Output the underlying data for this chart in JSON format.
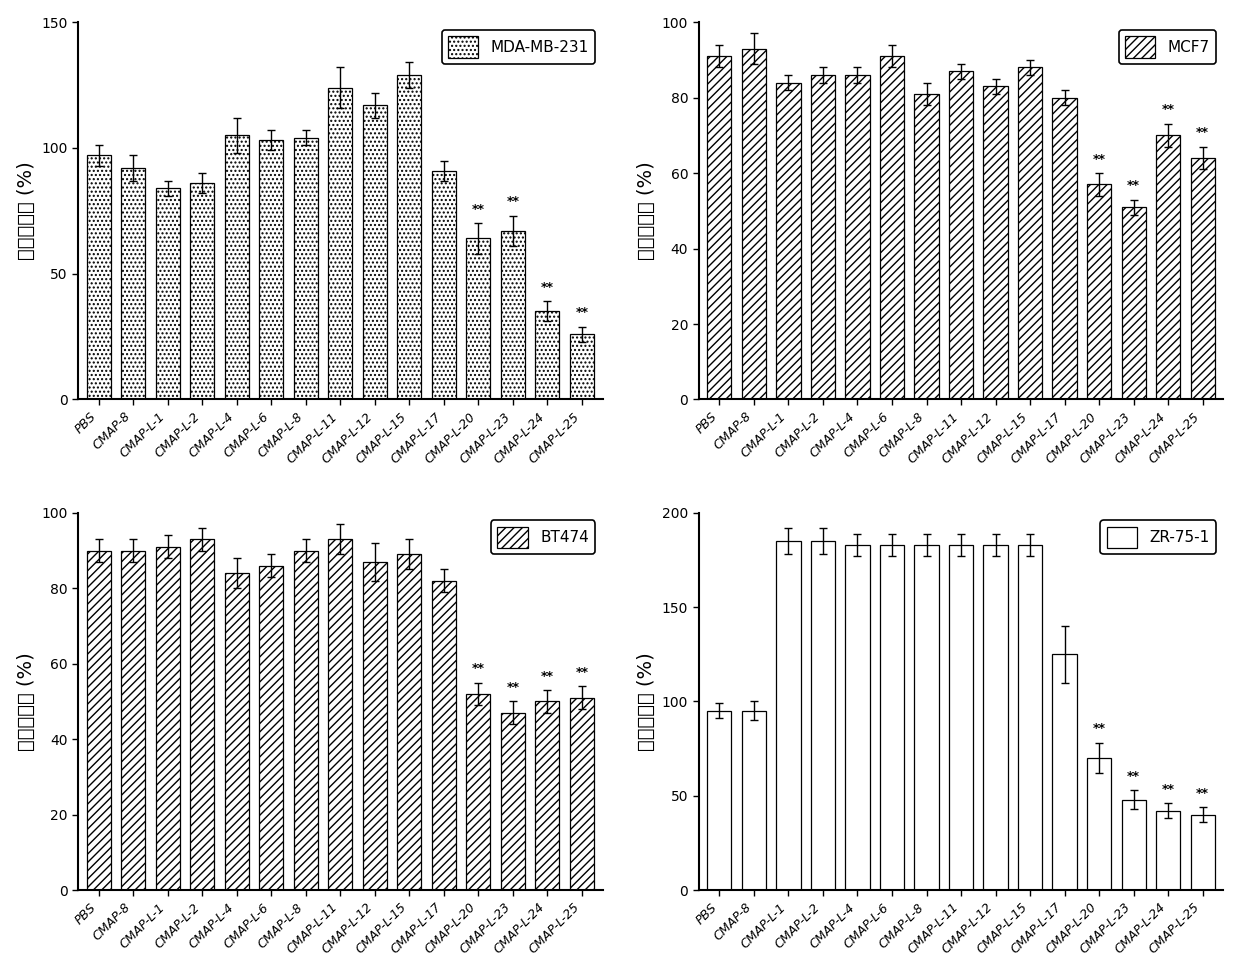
{
  "categories": [
    "PBS",
    "CMAP-8",
    "CMAP-L-1",
    "CMAP-L-2",
    "CMAP-L-4",
    "CMAP-L-6",
    "CMAP-L-8",
    "CMAP-L-11",
    "CMAP-L-12",
    "CMAP-L-15",
    "CMAP-L-17",
    "CMAP-L-20",
    "CMAP-L-23",
    "CMAP-L-24",
    "CMAP-L-25"
  ],
  "panels": [
    {
      "title": "MDA-MB-231",
      "hatch_pattern": "checkerboard",
      "values": [
        97,
        92,
        84,
        86,
        105,
        103,
        104,
        124,
        117,
        129,
        91,
        64,
        67,
        35,
        26
      ],
      "errors": [
        4,
        5,
        3,
        4,
        7,
        4,
        3,
        8,
        5,
        5,
        4,
        6,
        6,
        4,
        3
      ],
      "sig": [
        false,
        false,
        false,
        false,
        false,
        false,
        false,
        false,
        false,
        false,
        false,
        true,
        true,
        true,
        true
      ],
      "ylim": [
        0,
        150
      ],
      "yticks": [
        0,
        50,
        100,
        150
      ],
      "ylabel": "细胞存活率 (%)"
    },
    {
      "title": "MCF7",
      "hatch_pattern": "diagonal",
      "values": [
        91,
        93,
        84,
        86,
        86,
        91,
        81,
        87,
        83,
        88,
        80,
        57,
        51,
        70,
        64
      ],
      "errors": [
        3,
        4,
        2,
        2,
        2,
        3,
        3,
        2,
        2,
        2,
        2,
        3,
        2,
        3,
        3
      ],
      "sig": [
        false,
        false,
        false,
        false,
        false,
        false,
        false,
        false,
        false,
        false,
        false,
        true,
        true,
        true,
        true
      ],
      "ylim": [
        0,
        100
      ],
      "yticks": [
        0,
        20,
        40,
        60,
        80,
        100
      ],
      "ylabel": "细胞存活率 (%)"
    },
    {
      "title": "BT474",
      "hatch_pattern": "diagonal",
      "values": [
        90,
        90,
        91,
        93,
        84,
        86,
        90,
        93,
        87,
        89,
        82,
        52,
        47,
        50,
        51
      ],
      "errors": [
        3,
        3,
        3,
        3,
        4,
        3,
        3,
        4,
        5,
        4,
        3,
        3,
        3,
        3,
        3
      ],
      "sig": [
        false,
        false,
        false,
        false,
        false,
        false,
        false,
        false,
        false,
        false,
        false,
        true,
        true,
        true,
        true
      ],
      "ylim": [
        0,
        100
      ],
      "yticks": [
        0,
        20,
        40,
        60,
        80,
        100
      ],
      "ylabel": "细胞存活率 (%)"
    },
    {
      "title": "ZR-75-1",
      "hatch_pattern": "horizontal",
      "values": [
        95,
        95,
        185,
        185,
        183,
        183,
        183,
        183,
        183,
        183,
        125,
        70,
        48,
        42,
        40
      ],
      "errors": [
        4,
        5,
        7,
        7,
        6,
        6,
        6,
        6,
        6,
        6,
        15,
        8,
        5,
        4,
        4
      ],
      "sig": [
        false,
        false,
        false,
        false,
        false,
        false,
        false,
        false,
        false,
        false,
        false,
        true,
        true,
        true,
        true
      ],
      "ylim": [
        0,
        200
      ],
      "yticks": [
        0,
        50,
        100,
        150,
        200
      ],
      "ylabel": "细胞存活率 (%)"
    }
  ],
  "bar_color": "black",
  "bar_facecolor": "white",
  "sig_label": "**",
  "fontsize_tick": 9,
  "fontsize_ylabel": 13,
  "fontsize_legend": 11
}
